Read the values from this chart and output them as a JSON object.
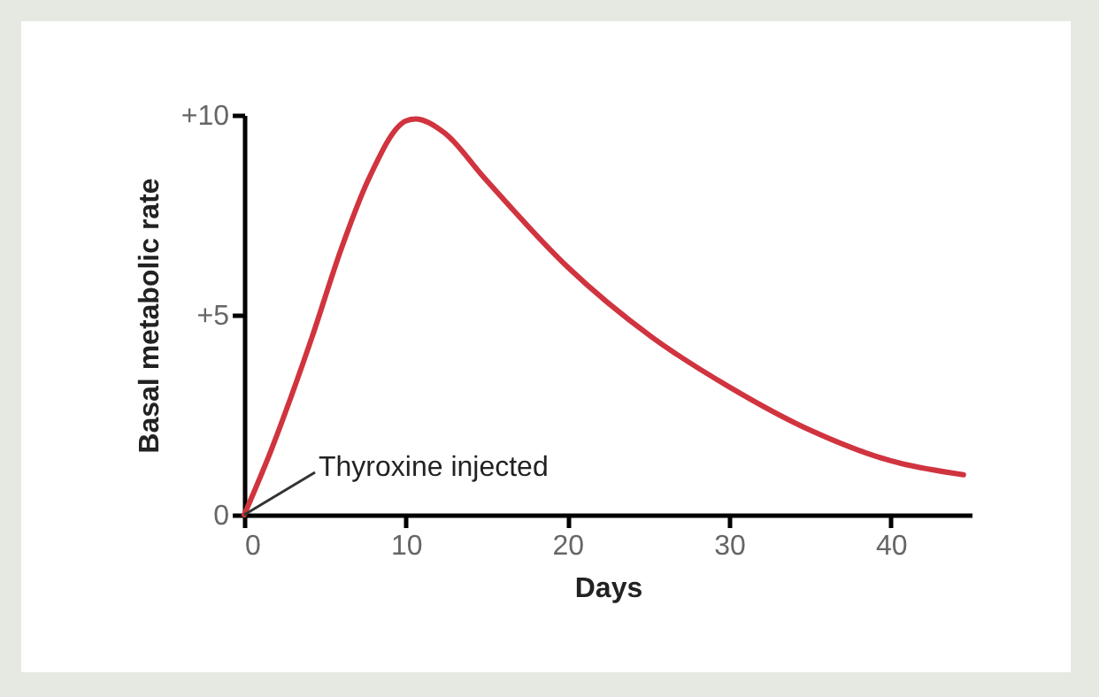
{
  "chart_data": {
    "type": "line",
    "xlabel": "Days",
    "ylabel": "Basal metabolic rate",
    "x": [
      0,
      1.7,
      2.4,
      4.2,
      6,
      7.7,
      10,
      10.6,
      12.4,
      14.8,
      20,
      25.2,
      30,
      35.1,
      40,
      44.5
    ],
    "series": [
      {
        "color": "#d0343f",
        "values": [
          0,
          1.65,
          2.4,
          4.45,
          6.65,
          8.4,
          9.85,
          9.9,
          9.55,
          8.45,
          6.2,
          4.45,
          3.2,
          2.1,
          1.35,
          1
        ]
      }
    ],
    "xlim": [
      0,
      45
    ],
    "xticks": [
      0,
      10,
      20,
      30,
      40
    ],
    "ylim": [
      0,
      10
    ],
    "yticks": [
      0,
      {
        "value": 5,
        "label": "+5"
      },
      {
        "value": 10,
        "label": "+10"
      }
    ],
    "annotations": [
      {
        "text": "Thyroxine injected",
        "x": 0,
        "y": 0
      }
    ],
    "grid": false,
    "marker": "none",
    "line_style": "solid"
  }
}
